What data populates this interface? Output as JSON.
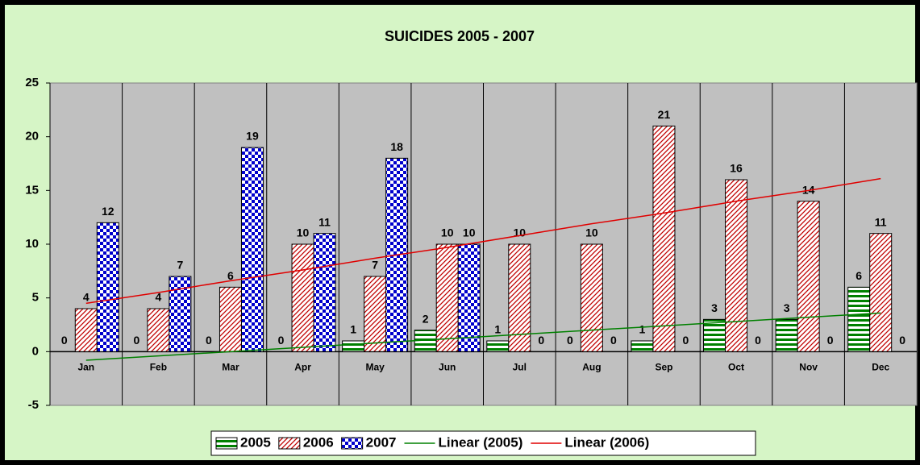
{
  "chart_data": {
    "type": "bar",
    "title": "SUICIDES 2005 - 2007",
    "categories": [
      "Jan",
      "Feb",
      "Mar",
      "Apr",
      "May",
      "Jun",
      "Jul",
      "Aug",
      "Sep",
      "Oct",
      "Nov",
      "Dec"
    ],
    "series": [
      {
        "name": "2005",
        "color": "#008000",
        "values": [
          0,
          0,
          0,
          0,
          1,
          2,
          1,
          0,
          1,
          3,
          3,
          6
        ]
      },
      {
        "name": "2006",
        "color": "#c00000",
        "values": [
          4,
          4,
          6,
          10,
          7,
          10,
          10,
          10,
          21,
          16,
          14,
          11
        ]
      },
      {
        "name": "2007",
        "color": "#0000cc",
        "values": [
          12,
          7,
          19,
          11,
          18,
          10,
          0,
          0,
          0,
          0,
          0,
          0
        ]
      },
      {
        "name": "Linear (2005)",
        "type": "line",
        "color": "#008000",
        "values": [
          -0.8,
          -0.4,
          0.0,
          0.4,
          0.8,
          1.2,
          1.6,
          2.0,
          2.4,
          2.8,
          3.2,
          3.6
        ]
      },
      {
        "name": "Linear (2006)",
        "type": "line",
        "color": "#e00000",
        "values": [
          4.5,
          5.5,
          6.6,
          7.6,
          8.7,
          9.7,
          10.8,
          11.9,
          12.9,
          14.0,
          15.0,
          16.1
        ]
      }
    ],
    "ylim": [
      -5,
      25
    ],
    "yticks": [
      -5,
      0,
      5,
      10,
      15,
      20,
      25
    ],
    "legend": "bottom"
  }
}
